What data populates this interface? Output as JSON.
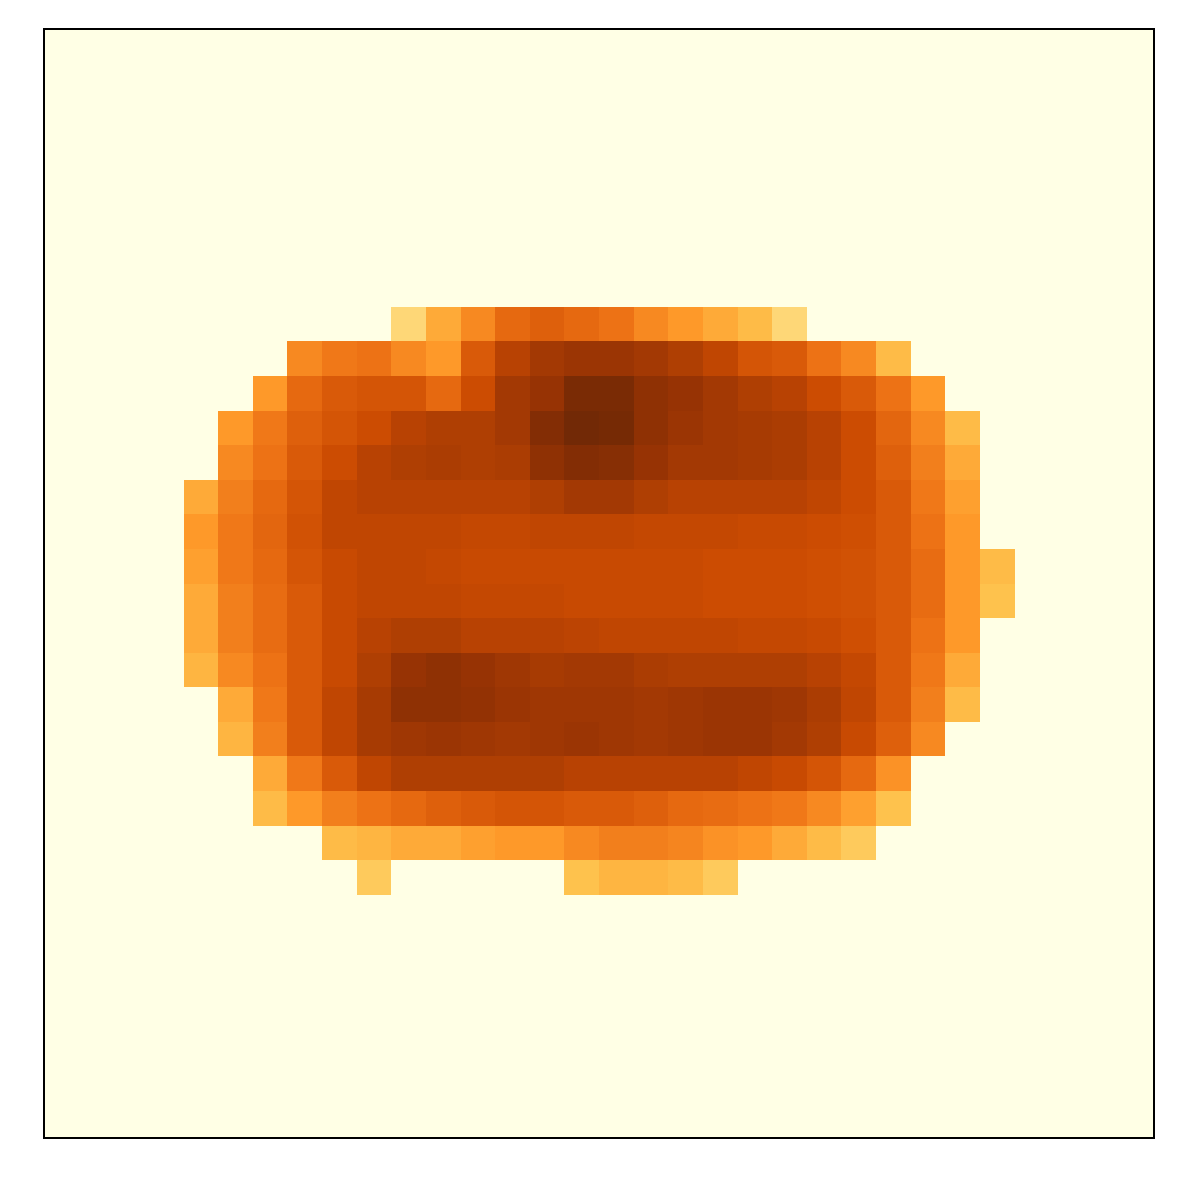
{
  "chart_data": {
    "type": "heatmap",
    "color": "YlOrBr",
    "zlim": [
      0,
      1
    ],
    "tick_labels": false,
    "cells": [
      [
        0,
        0,
        0,
        0,
        0,
        0,
        0,
        0,
        0,
        0,
        0,
        0,
        0,
        0,
        0,
        0,
        0,
        0,
        0,
        0,
        0,
        0,
        0,
        0,
        0,
        0,
        0,
        0,
        0,
        0,
        0,
        0
      ],
      [
        0,
        0,
        0,
        0,
        0,
        0,
        0,
        0,
        0,
        0,
        0,
        0,
        0,
        0,
        0,
        0,
        0,
        0,
        0,
        0,
        0,
        0,
        0,
        0,
        0,
        0,
        0,
        0,
        0,
        0,
        0,
        0
      ],
      [
        0,
        0,
        0,
        0,
        0,
        0,
        0,
        0,
        0,
        0,
        0,
        0,
        0,
        0,
        0,
        0,
        0,
        0,
        0,
        0,
        0,
        0,
        0,
        0,
        0,
        0,
        0,
        0,
        0,
        0,
        0,
        0
      ],
      [
        0,
        0,
        0,
        0,
        0,
        0,
        0,
        0,
        0,
        0,
        0,
        0,
        0,
        0,
        0,
        0,
        0,
        0,
        0,
        0,
        0,
        0,
        0,
        0,
        0,
        0,
        0,
        0,
        0,
        0,
        0,
        0
      ],
      [
        0,
        0,
        0,
        0,
        0,
        0,
        0,
        0,
        0,
        0,
        0,
        0,
        0,
        0,
        0,
        0,
        0,
        0,
        0,
        0,
        0,
        0,
        0,
        0,
        0,
        0,
        0,
        0,
        0,
        0,
        0,
        0
      ],
      [
        0,
        0,
        0,
        0,
        0,
        0,
        0,
        0,
        0,
        0,
        0,
        0,
        0,
        0,
        0,
        0,
        0,
        0,
        0,
        0,
        0,
        0,
        0,
        0,
        0,
        0,
        0,
        0,
        0,
        0,
        0,
        0
      ],
      [
        0,
        0,
        0,
        0,
        0,
        0,
        0,
        0,
        0,
        0,
        0,
        0,
        0,
        0,
        0,
        0,
        0,
        0,
        0,
        0,
        0,
        0,
        0,
        0,
        0,
        0,
        0,
        0,
        0,
        0,
        0,
        0
      ],
      [
        0,
        0,
        0,
        0,
        0,
        0,
        0,
        0,
        0,
        0,
        0,
        0,
        0,
        0,
        0,
        0,
        0,
        0,
        0,
        0,
        0,
        0,
        0,
        0,
        0,
        0,
        0,
        0,
        0,
        0,
        0,
        0
      ],
      [
        0,
        0,
        0,
        0,
        0,
        0,
        0,
        0,
        0,
        0,
        0.3,
        0.45,
        0.55,
        0.65,
        0.68,
        0.65,
        0.62,
        0.55,
        0.5,
        0.45,
        0.4,
        0.3,
        0,
        0,
        0,
        0,
        0,
        0,
        0,
        0,
        0,
        0
      ],
      [
        0,
        0,
        0,
        0,
        0,
        0,
        0,
        0.55,
        0.6,
        0.62,
        0.55,
        0.5,
        0.7,
        0.8,
        0.85,
        0.87,
        0.87,
        0.85,
        0.82,
        0.78,
        0.72,
        0.7,
        0.62,
        0.55,
        0.4,
        0,
        0,
        0,
        0,
        0,
        0,
        0
      ],
      [
        0,
        0,
        0,
        0,
        0,
        0,
        0.5,
        0.65,
        0.7,
        0.72,
        0.72,
        0.65,
        0.75,
        0.85,
        0.88,
        0.95,
        0.95,
        0.9,
        0.88,
        0.85,
        0.82,
        0.8,
        0.75,
        0.7,
        0.62,
        0.5,
        0,
        0,
        0,
        0,
        0,
        0
      ],
      [
        0,
        0,
        0,
        0,
        0,
        0.5,
        0.6,
        0.68,
        0.72,
        0.75,
        0.8,
        0.82,
        0.82,
        0.85,
        0.93,
        0.97,
        0.96,
        0.9,
        0.87,
        0.85,
        0.84,
        0.83,
        0.8,
        0.75,
        0.66,
        0.55,
        0.4,
        0,
        0,
        0,
        0,
        0
      ],
      [
        0,
        0,
        0,
        0,
        0,
        0.55,
        0.62,
        0.7,
        0.75,
        0.8,
        0.82,
        0.83,
        0.82,
        0.83,
        0.9,
        0.93,
        0.92,
        0.88,
        0.85,
        0.85,
        0.84,
        0.83,
        0.8,
        0.75,
        0.68,
        0.58,
        0.45,
        0,
        0,
        0,
        0,
        0
      ],
      [
        0,
        0,
        0,
        0,
        0.45,
        0.58,
        0.65,
        0.72,
        0.78,
        0.8,
        0.8,
        0.8,
        0.8,
        0.8,
        0.82,
        0.85,
        0.85,
        0.82,
        0.8,
        0.8,
        0.8,
        0.8,
        0.78,
        0.75,
        0.7,
        0.6,
        0.48,
        0,
        0,
        0,
        0,
        0
      ],
      [
        0,
        0,
        0,
        0,
        0.5,
        0.6,
        0.66,
        0.73,
        0.78,
        0.78,
        0.78,
        0.78,
        0.77,
        0.77,
        0.78,
        0.78,
        0.78,
        0.77,
        0.77,
        0.77,
        0.76,
        0.76,
        0.75,
        0.74,
        0.7,
        0.62,
        0.5,
        0,
        0,
        0,
        0,
        0
      ],
      [
        0,
        0,
        0,
        0,
        0.48,
        0.6,
        0.65,
        0.72,
        0.76,
        0.78,
        0.78,
        0.77,
        0.76,
        0.76,
        0.76,
        0.76,
        0.76,
        0.76,
        0.76,
        0.75,
        0.75,
        0.75,
        0.74,
        0.73,
        0.7,
        0.64,
        0.5,
        0.4,
        0,
        0,
        0,
        0
      ],
      [
        0,
        0,
        0,
        0,
        0.45,
        0.58,
        0.64,
        0.7,
        0.76,
        0.78,
        0.78,
        0.78,
        0.77,
        0.77,
        0.77,
        0.76,
        0.76,
        0.76,
        0.76,
        0.75,
        0.75,
        0.75,
        0.74,
        0.73,
        0.7,
        0.64,
        0.5,
        0.38,
        0,
        0,
        0,
        0
      ],
      [
        0,
        0,
        0,
        0,
        0.45,
        0.58,
        0.64,
        0.7,
        0.76,
        0.8,
        0.82,
        0.82,
        0.8,
        0.8,
        0.8,
        0.79,
        0.78,
        0.78,
        0.78,
        0.78,
        0.77,
        0.77,
        0.76,
        0.74,
        0.7,
        0.62,
        0.5,
        0,
        0,
        0,
        0,
        0
      ],
      [
        0,
        0,
        0,
        0,
        0.42,
        0.55,
        0.62,
        0.7,
        0.76,
        0.82,
        0.88,
        0.9,
        0.88,
        0.86,
        0.84,
        0.85,
        0.85,
        0.83,
        0.82,
        0.82,
        0.82,
        0.82,
        0.8,
        0.77,
        0.7,
        0.6,
        0.45,
        0,
        0,
        0,
        0,
        0
      ],
      [
        0,
        0,
        0,
        0,
        0,
        0.45,
        0.6,
        0.7,
        0.78,
        0.84,
        0.9,
        0.9,
        0.89,
        0.87,
        0.86,
        0.86,
        0.86,
        0.85,
        0.86,
        0.87,
        0.87,
        0.86,
        0.83,
        0.78,
        0.7,
        0.58,
        0.4,
        0,
        0,
        0,
        0,
        0
      ],
      [
        0,
        0,
        0,
        0,
        0,
        0.42,
        0.58,
        0.7,
        0.78,
        0.84,
        0.86,
        0.87,
        0.86,
        0.85,
        0.86,
        0.87,
        0.86,
        0.85,
        0.86,
        0.87,
        0.87,
        0.85,
        0.82,
        0.76,
        0.68,
        0.55,
        0,
        0,
        0,
        0,
        0,
        0
      ],
      [
        0,
        0,
        0,
        0,
        0,
        0,
        0.45,
        0.6,
        0.7,
        0.78,
        0.82,
        0.82,
        0.82,
        0.82,
        0.82,
        0.8,
        0.8,
        0.8,
        0.8,
        0.8,
        0.78,
        0.76,
        0.72,
        0.65,
        0.52,
        0,
        0,
        0,
        0,
        0,
        0,
        0
      ],
      [
        0,
        0,
        0,
        0,
        0,
        0,
        0.4,
        0.5,
        0.58,
        0.62,
        0.65,
        0.68,
        0.7,
        0.72,
        0.72,
        0.7,
        0.7,
        0.68,
        0.65,
        0.64,
        0.62,
        0.6,
        0.55,
        0.48,
        0.38,
        0,
        0,
        0,
        0,
        0,
        0,
        0
      ],
      [
        0,
        0,
        0,
        0,
        0,
        0,
        0,
        0,
        0.4,
        0.42,
        0.45,
        0.45,
        0.48,
        0.5,
        0.5,
        0.55,
        0.58,
        0.58,
        0.56,
        0.52,
        0.5,
        0.45,
        0.4,
        0.35,
        0,
        0,
        0,
        0,
        0,
        0,
        0,
        0
      ],
      [
        0,
        0,
        0,
        0,
        0,
        0,
        0,
        0,
        0,
        0.35,
        0,
        0,
        0,
        0,
        0,
        0.38,
        0.42,
        0.42,
        0.4,
        0.35,
        0,
        0,
        0,
        0,
        0,
        0,
        0,
        0,
        0,
        0,
        0,
        0
      ],
      [
        0,
        0,
        0,
        0,
        0,
        0,
        0,
        0,
        0,
        0,
        0,
        0,
        0,
        0,
        0,
        0,
        0,
        0,
        0,
        0,
        0,
        0,
        0,
        0,
        0,
        0,
        0,
        0,
        0,
        0,
        0,
        0
      ],
      [
        0,
        0,
        0,
        0,
        0,
        0,
        0,
        0,
        0,
        0,
        0,
        0,
        0,
        0,
        0,
        0,
        0,
        0,
        0,
        0,
        0,
        0,
        0,
        0,
        0,
        0,
        0,
        0,
        0,
        0,
        0,
        0
      ],
      [
        0,
        0,
        0,
        0,
        0,
        0,
        0,
        0,
        0,
        0,
        0,
        0,
        0,
        0,
        0,
        0,
        0,
        0,
        0,
        0,
        0,
        0,
        0,
        0,
        0,
        0,
        0,
        0,
        0,
        0,
        0,
        0
      ],
      [
        0,
        0,
        0,
        0,
        0,
        0,
        0,
        0,
        0,
        0,
        0,
        0,
        0,
        0,
        0,
        0,
        0,
        0,
        0,
        0,
        0,
        0,
        0,
        0,
        0,
        0,
        0,
        0,
        0,
        0,
        0,
        0
      ],
      [
        0,
        0,
        0,
        0,
        0,
        0,
        0,
        0,
        0,
        0,
        0,
        0,
        0,
        0,
        0,
        0,
        0,
        0,
        0,
        0,
        0,
        0,
        0,
        0,
        0,
        0,
        0,
        0,
        0,
        0,
        0,
        0
      ],
      [
        0,
        0,
        0,
        0,
        0,
        0,
        0,
        0,
        0,
        0,
        0,
        0,
        0,
        0,
        0,
        0,
        0,
        0,
        0,
        0,
        0,
        0,
        0,
        0,
        0,
        0,
        0,
        0,
        0,
        0,
        0,
        0
      ],
      [
        0,
        0,
        0,
        0,
        0,
        0,
        0,
        0,
        0,
        0,
        0,
        0,
        0,
        0,
        0,
        0,
        0,
        0,
        0,
        0,
        0,
        0,
        0,
        0,
        0,
        0,
        0,
        0,
        0,
        0,
        0,
        0
      ]
    ]
  }
}
